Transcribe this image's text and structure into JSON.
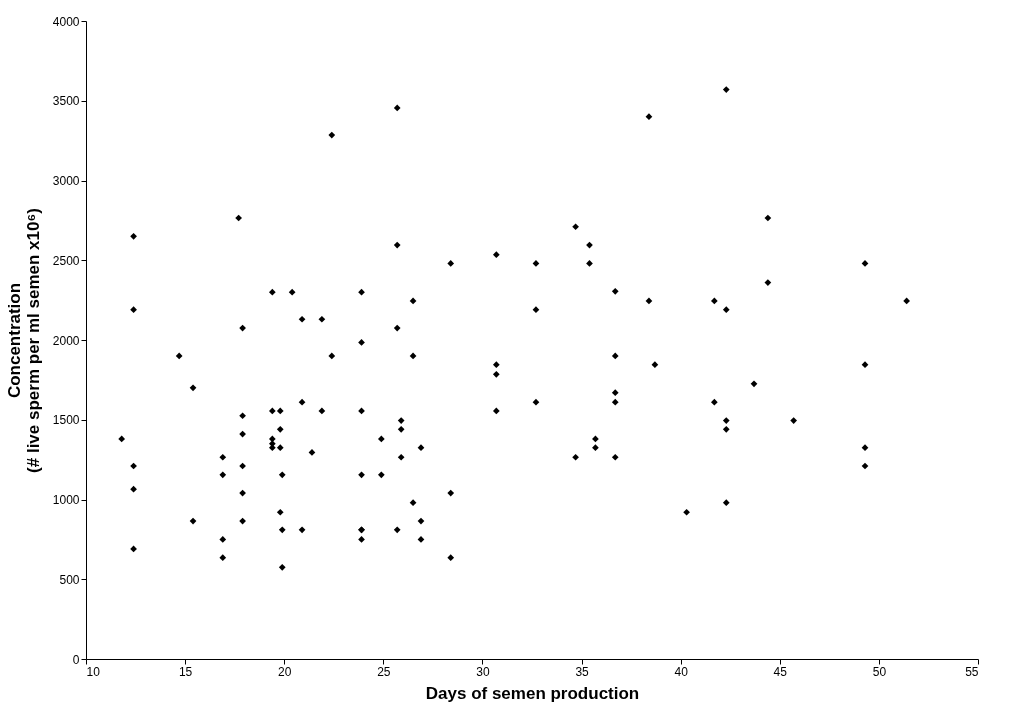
{
  "chart_data": {
    "type": "scatter",
    "xlabel": "Days of semen production",
    "ylabel": "Concentration\n(# live sperm per ml semen x10⁶)",
    "x": [
      11.8,
      12.4,
      12.4,
      12.4,
      12.4,
      12.4,
      14.7,
      15.4,
      15.4,
      16.9,
      16.9,
      16.9,
      16.9,
      17.7,
      17.9,
      17.9,
      17.9,
      17.9,
      17.9,
      17.9,
      19.4,
      19.4,
      19.4,
      19.4,
      19.4,
      19.8,
      19.8,
      19.8,
      19.8,
      19.9,
      19.9,
      19.9,
      20.4,
      20.9,
      20.9,
      20.9,
      21.4,
      21.9,
      21.9,
      22.4,
      22.4,
      23.9,
      23.9,
      23.9,
      23.9,
      23.9,
      23.9,
      23.9,
      24.9,
      24.9,
      25.7,
      25.7,
      25.7,
      25.7,
      25.9,
      25.9,
      25.9,
      26.5,
      26.5,
      26.5,
      26.9,
      26.9,
      26.9,
      28.4,
      28.4,
      28.4,
      30.7,
      30.7,
      30.7,
      30.7,
      32.7,
      32.7,
      32.7,
      34.7,
      34.7,
      35.4,
      35.4,
      35.7,
      35.7,
      36.7,
      36.7,
      36.7,
      36.7,
      36.7,
      38.4,
      38.4,
      38.7,
      40.3,
      41.7,
      41.7,
      42.3,
      42.3,
      42.3,
      42.3,
      42.3,
      43.7,
      44.4,
      44.4,
      45.7,
      49.3,
      49.3,
      49.3,
      49.3,
      51.4
    ],
    "series": [
      {
        "color": "#000000",
        "values": [
          1380,
          2650,
          2190,
          1210,
          1065,
          690,
          1900,
          1700,
          865,
          1265,
          1155,
          750,
          635,
          2765,
          2075,
          1525,
          1410,
          1210,
          1040,
          865,
          2300,
          1555,
          1380,
          1350,
          1325,
          1555,
          1440,
          1325,
          920,
          1155,
          810,
          575,
          2300,
          2130,
          1610,
          810,
          1295,
          2130,
          1555,
          3285,
          1900,
          2300,
          1985,
          1555,
          1155,
          810,
          810,
          750,
          1380,
          1155,
          3455,
          2595,
          2075,
          810,
          1495,
          1440,
          1265,
          2245,
          1900,
          980,
          1325,
          865,
          750,
          2480,
          1040,
          635,
          2535,
          1845,
          1785,
          1555,
          2480,
          2190,
          1610,
          2710,
          1265,
          2595,
          2480,
          1380,
          1325,
          2305,
          1900,
          1670,
          1610,
          1265,
          3400,
          2245,
          1845,
          920,
          2245,
          1610,
          3570,
          2190,
          1495,
          1440,
          980,
          1725,
          2765,
          2360,
          1495,
          2480,
          1845,
          1325,
          1210,
          2245
        ]
      }
    ],
    "xlim": [
      10,
      55
    ],
    "xticks": [
      10,
      15,
      20,
      25,
      30,
      35,
      40,
      45,
      50,
      55
    ],
    "ylim": [
      0,
      4000
    ],
    "yticks": [
      0,
      500,
      1000,
      1500,
      2000,
      2500,
      3000,
      3500,
      4000
    ],
    "marker": "diamond",
    "grid": false,
    "legend": false
  }
}
